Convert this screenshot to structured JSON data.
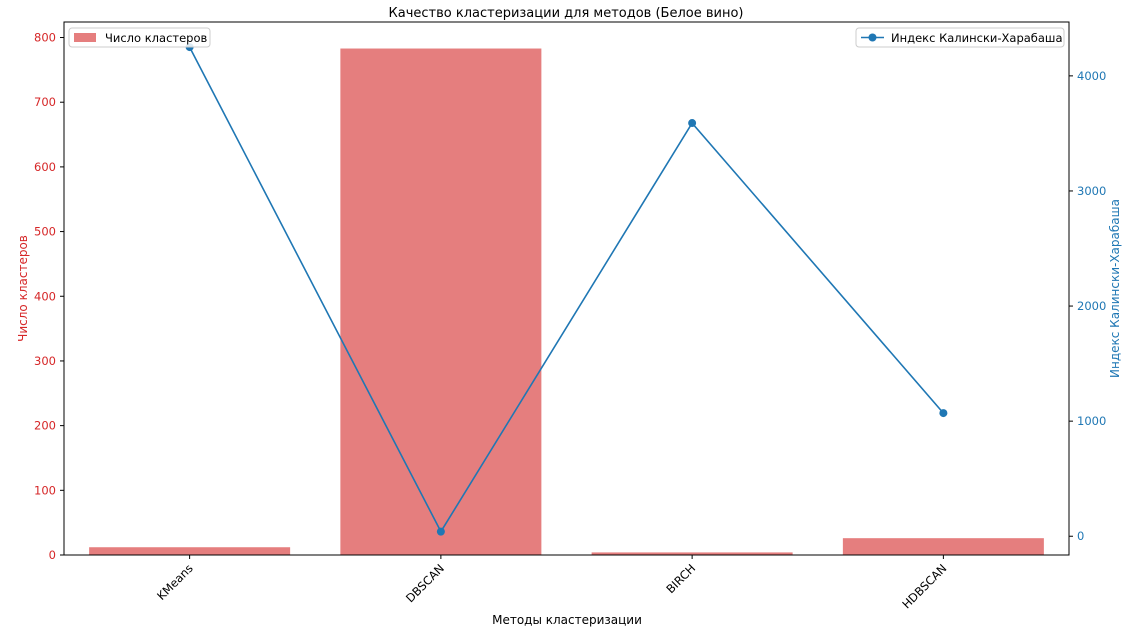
{
  "chart_data": {
    "type": "bar",
    "title": "Качество кластеризации для методов (Белое вино)",
    "xlabel": "Методы кластеризации",
    "categories": [
      "KMeans",
      "DBSCAN",
      "BIRCH",
      "HDBSCAN"
    ],
    "left_axis": {
      "label": "Число кластеров",
      "color": "#d62728",
      "ylim": [
        0,
        824
      ],
      "ticks": [
        0,
        100,
        200,
        300,
        400,
        500,
        600,
        700,
        800
      ]
    },
    "right_axis": {
      "label": "Индекс Калински-Харабаша",
      "color": "#1f77b4",
      "ylim": [
        -163,
        4468
      ],
      "ticks": [
        0,
        1000,
        2000,
        3000,
        4000
      ]
    },
    "series": [
      {
        "name": "Число кластеров",
        "type": "bar",
        "axis": "left",
        "color": "#e57e7e",
        "values": [
          12,
          783,
          4,
          26
        ]
      },
      {
        "name": "Индекс Калински-Харабаша",
        "type": "line",
        "axis": "right",
        "color": "#1f77b4",
        "values": [
          4250,
          40,
          3590,
          1070
        ]
      }
    ],
    "legends": {
      "left": {
        "position": "top-left",
        "label": "Число кластеров"
      },
      "right": {
        "position": "top-right",
        "label": "Индекс Калински-Харабаша"
      }
    },
    "grid": false
  }
}
